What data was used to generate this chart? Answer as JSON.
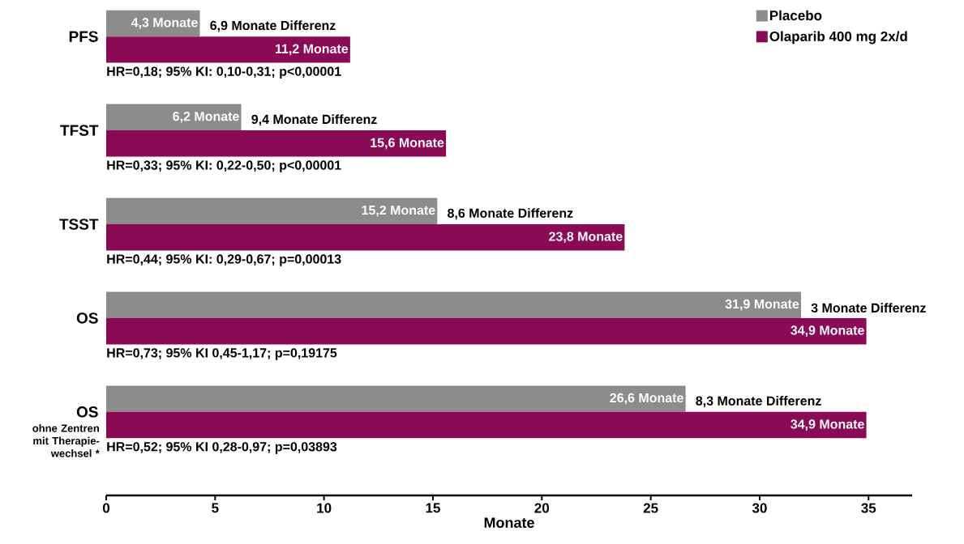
{
  "chart_data": {
    "type": "bar",
    "orientation": "horizontal",
    "categories": [
      "PFS",
      "TFST",
      "TSST",
      "OS",
      "OS"
    ],
    "series": [
      {
        "name": "Placebo",
        "color": "#8c8c8c",
        "values": [
          4.3,
          6.2,
          15.2,
          31.9,
          26.6
        ],
        "value_labels": [
          "4,3 Monate",
          "6,2 Monate",
          "15,2 Monate",
          "31,9 Monate",
          "26,6 Monate"
        ]
      },
      {
        "name": "Olaparib 400 mg 2x/d",
        "color": "#8b0a55",
        "values": [
          11.2,
          15.6,
          23.8,
          34.9,
          34.9
        ],
        "value_labels": [
          "11,2 Monate",
          "15,6 Monate",
          "23,8 Monate",
          "34,9 Monate",
          "34,9 Monate"
        ]
      }
    ],
    "xlabel": "Monate",
    "xlim": [
      0,
      37
    ],
    "xticks": [
      0,
      5,
      10,
      15,
      20,
      25,
      30,
      35
    ],
    "legend": "top right",
    "grid": false,
    "annotations": [
      "6,9 Monate Differenz",
      "9,4 Monate Differenz",
      "8,6 Monate Differenz",
      "3 Monate Differenz",
      "8,3 Monate Differenz",
      "HR=0,18; 95%  KI: 0,10-0,31; p<0,00001",
      "HR=0,33; 95%  KI: 0,22-0,50; p<0,00001",
      "HR=0,44; 95%  KI: 0,29-0,67; p=0,00013",
      "HR=0,73; 95%  KI 0,45-1,17; p=0,19175",
      "HR=0,52; 95%  KI 0,28-0,97; p=0,03893",
      "ohne Zentren mit Therapie-wechsel *"
    ]
  }
}
